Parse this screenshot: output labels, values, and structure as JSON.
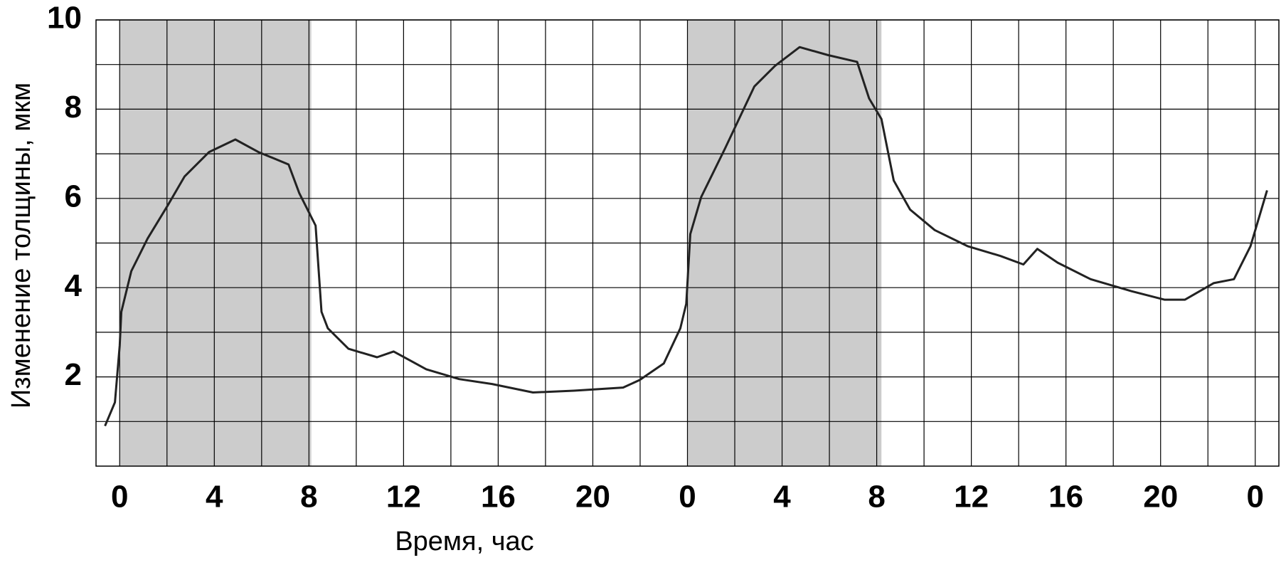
{
  "chart_data": {
    "type": "line",
    "xlabel": "Время, час",
    "ylabel": "Изменение толщины, мкм",
    "xlim": [
      -1,
      49
    ],
    "ylim": [
      0,
      10
    ],
    "xticks": [
      {
        "value": 0,
        "label": "0"
      },
      {
        "value": 4,
        "label": "4"
      },
      {
        "value": 8,
        "label": "8"
      },
      {
        "value": 12,
        "label": "12"
      },
      {
        "value": 16,
        "label": "16"
      },
      {
        "value": 20,
        "label": "20"
      },
      {
        "value": 24,
        "label": "0"
      },
      {
        "value": 28,
        "label": "4"
      },
      {
        "value": 32,
        "label": "8"
      },
      {
        "value": 36,
        "label": "12"
      },
      {
        "value": 40,
        "label": "16"
      },
      {
        "value": 44,
        "label": "20"
      },
      {
        "value": 48,
        "label": "0"
      }
    ],
    "xminor": [
      2,
      6,
      10,
      14,
      18,
      22,
      26,
      30,
      34,
      38,
      42,
      46
    ],
    "yticks": [
      2,
      4,
      6,
      8,
      10
    ],
    "yminor": [
      1,
      3,
      5,
      7,
      9
    ],
    "grid": true,
    "shaded": [
      [
        0,
        8.1
      ],
      [
        24,
        32.2
      ]
    ],
    "shade_color": "#cccccc",
    "color": "#222222",
    "x": [
      -0.62,
      -0.2,
      0,
      0.07,
      0.49,
      1.18,
      2.04,
      2.74,
      3.78,
      4.89,
      5.86,
      7.14,
      7.59,
      8.28,
      8.53,
      8.8,
      9.67,
      10.88,
      11.58,
      12.96,
      14.35,
      15.74,
      17.47,
      19.2,
      21.28,
      21.98,
      23.0,
      23.7,
      23.95,
      24.12,
      24.58,
      25.6,
      26.83,
      27.7,
      28.74,
      29.95,
      31.17,
      31.68,
      32.2,
      32.72,
      33.41,
      34.45,
      35.84,
      37.23,
      38.2,
      38.79,
      39.65,
      41.04,
      42.77,
      44.16,
      45.03,
      46.24,
      47.1,
      47.8,
      48.5
    ],
    "values": [
      0.9,
      1.43,
      2.7,
      3.46,
      4.37,
      5.1,
      5.85,
      6.49,
      7.04,
      7.32,
      7.04,
      6.76,
      6.12,
      5.39,
      3.46,
      3.09,
      2.63,
      2.44,
      2.57,
      2.17,
      1.95,
      1.84,
      1.65,
      1.69,
      1.76,
      1.93,
      2.3,
      3.09,
      3.64,
      5.2,
      6.03,
      7.13,
      8.51,
      8.97,
      9.39,
      9.21,
      9.06,
      8.24,
      7.78,
      6.4,
      5.75,
      5.29,
      4.93,
      4.71,
      4.52,
      4.87,
      4.56,
      4.19,
      3.92,
      3.73,
      3.73,
      4.1,
      4.19,
      4.93,
      6.18
    ]
  }
}
